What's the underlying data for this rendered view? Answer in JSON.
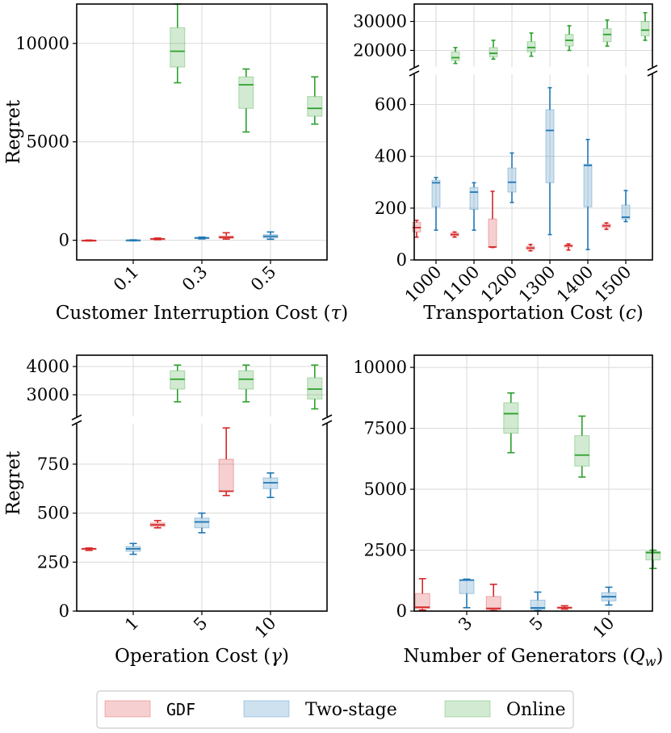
{
  "colors": {
    "GDF": "#d62728",
    "Two-stage": "#1f77b4",
    "Online": "#2ca02c"
  },
  "legend": {
    "placement": "bottom-center",
    "entries": [
      {
        "name": "GDF",
        "label": "GDF",
        "color": "#d62728"
      },
      {
        "name": "Two-stage",
        "label": "Two-stage",
        "color": "#1f77b4"
      },
      {
        "name": "Online",
        "label": "Online",
        "color": "#2ca02c"
      }
    ]
  },
  "chart_data": [
    {
      "type": "box",
      "id": "interruption",
      "xlabel": "Customer Interruption Cost (",
      "xsymbol": "τ",
      "xlabel_end": ")",
      "ylabel": "Regret",
      "categories": [
        "0.1",
        "0.3",
        "0.5"
      ],
      "ylim": [
        -1000,
        12000
      ],
      "yticks": [
        0,
        5000,
        10000
      ],
      "ytick_labels": [
        "0",
        "5000",
        "10000"
      ],
      "series": [
        {
          "name": "GDF",
          "boxes": [
            {
              "min": -30,
              "q1": -20,
              "median": -10,
              "q3": 0,
              "max": 10
            },
            {
              "min": 30,
              "q1": 50,
              "median": 70,
              "q3": 90,
              "max": 110
            },
            {
              "min": 60,
              "q1": 100,
              "median": 150,
              "q3": 220,
              "max": 380
            }
          ]
        },
        {
          "name": "Two-stage",
          "boxes": [
            {
              "min": -20,
              "q1": -10,
              "median": 0,
              "q3": 10,
              "max": 20
            },
            {
              "min": 70,
              "q1": 100,
              "median": 120,
              "q3": 140,
              "max": 160
            },
            {
              "min": 50,
              "q1": 120,
              "median": 200,
              "q3": 280,
              "max": 420
            }
          ]
        },
        {
          "name": "Online",
          "boxes": [
            {
              "min": 8000,
              "q1": 8800,
              "median": 9600,
              "q3": 10800,
              "max": 12000
            },
            {
              "min": 5500,
              "q1": 6700,
              "median": 7900,
              "q3": 8300,
              "max": 8700
            },
            {
              "min": 5900,
              "q1": 6300,
              "median": 6700,
              "q3": 7300,
              "max": 8300
            }
          ]
        }
      ]
    },
    {
      "type": "box",
      "id": "transportation",
      "xlabel": "Transportation Cost (",
      "xsymbol": "c",
      "xlabel_end": ")",
      "ylabel": "",
      "categories": [
        "1000",
        "1100",
        "1200",
        "1300",
        "1400",
        "1500"
      ],
      "broken_axis": true,
      "ylim_lower": [
        0,
        720
      ],
      "ylim_upper": [
        14000,
        36000
      ],
      "yticks_lower": [
        0,
        200,
        400,
        600
      ],
      "ytick_labels_lower": [
        "0",
        "200",
        "400",
        "600"
      ],
      "yticks_upper": [
        20000,
        30000
      ],
      "ytick_labels_upper": [
        "20000",
        "30000"
      ],
      "series": [
        {
          "name": "GDF",
          "boxes": [
            {
              "min": 88,
              "q1": 108,
              "median": 125,
              "q3": 145,
              "max": 153
            },
            {
              "min": 88,
              "q1": 93,
              "median": 98,
              "q3": 104,
              "max": 108
            },
            {
              "min": 48,
              "q1": 50,
              "median": 50,
              "q3": 158,
              "max": 265
            },
            {
              "min": 35,
              "q1": 40,
              "median": 46,
              "q3": 53,
              "max": 60
            },
            {
              "min": 38,
              "q1": 50,
              "median": 55,
              "q3": 58,
              "max": 62
            },
            {
              "min": 118,
              "q1": 125,
              "median": 132,
              "q3": 138,
              "max": 143
            }
          ]
        },
        {
          "name": "Two-stage",
          "boxes": [
            {
              "min": 115,
              "q1": 205,
              "median": 298,
              "q3": 308,
              "max": 318
            },
            {
              "min": 115,
              "q1": 195,
              "median": 262,
              "q3": 280,
              "max": 298
            },
            {
              "min": 222,
              "q1": 262,
              "median": 300,
              "q3": 355,
              "max": 413
            },
            {
              "min": 98,
              "q1": 298,
              "median": 500,
              "q3": 580,
              "max": 665
            },
            {
              "min": 40,
              "q1": 205,
              "median": 365,
              "q3": 370,
              "max": 465
            },
            {
              "min": 148,
              "q1": 158,
              "median": 165,
              "q3": 212,
              "max": 268
            }
          ]
        },
        {
          "name": "Online",
          "boxes": [
            {
              "min": 15500,
              "q1": 16500,
              "median": 17500,
              "q3": 19500,
              "max": 21000
            },
            {
              "min": 17000,
              "q1": 17800,
              "median": 19000,
              "q3": 21000,
              "max": 23500
            },
            {
              "min": 18000,
              "q1": 19500,
              "median": 21000,
              "q3": 23000,
              "max": 26000
            },
            {
              "min": 20000,
              "q1": 21500,
              "median": 23500,
              "q3": 25500,
              "max": 28500
            },
            {
              "min": 21500,
              "q1": 23000,
              "median": 25500,
              "q3": 27500,
              "max": 30500
            },
            {
              "min": 23500,
              "q1": 25000,
              "median": 27000,
              "q3": 30000,
              "max": 33000
            }
          ]
        }
      ]
    },
    {
      "type": "box",
      "id": "operation",
      "xlabel": "Operation Cost (",
      "xsymbol": "γ",
      "xlabel_end": ")",
      "ylabel": "Regret",
      "categories": [
        "1",
        "5",
        "10"
      ],
      "broken_axis": true,
      "ylim_lower": [
        0,
        960
      ],
      "ylim_upper": [
        2200,
        4400
      ],
      "yticks_lower": [
        0,
        250,
        500,
        750
      ],
      "ytick_labels_lower": [
        "0",
        "250",
        "500",
        "750"
      ],
      "yticks_upper": [
        3000,
        4000
      ],
      "ytick_labels_upper": [
        "3000",
        "4000"
      ],
      "series": [
        {
          "name": "GDF",
          "boxes": [
            {
              "min": 310,
              "q1": 315,
              "median": 318,
              "q3": 320,
              "max": 322
            },
            {
              "min": 425,
              "q1": 432,
              "median": 440,
              "q3": 450,
              "max": 462
            },
            {
              "min": 590,
              "q1": 610,
              "median": 612,
              "q3": 775,
              "max": 935
            }
          ]
        },
        {
          "name": "Two-stage",
          "boxes": [
            {
              "min": 290,
              "q1": 305,
              "median": 318,
              "q3": 330,
              "max": 345
            },
            {
              "min": 400,
              "q1": 425,
              "median": 455,
              "q3": 475,
              "max": 500
            },
            {
              "min": 580,
              "q1": 625,
              "median": 655,
              "q3": 680,
              "max": 705
            }
          ]
        },
        {
          "name": "Online",
          "boxes": [
            {
              "min": 2750,
              "q1": 3200,
              "median": 3550,
              "q3": 3850,
              "max": 4050
            },
            {
              "min": 2750,
              "q1": 3200,
              "median": 3550,
              "q3": 3850,
              "max": 4050
            },
            {
              "min": 2500,
              "q1": 2850,
              "median": 3200,
              "q3": 3600,
              "max": 4050
            }
          ]
        }
      ]
    },
    {
      "type": "box",
      "id": "generators",
      "xlabel": "Number of Generators (",
      "xsymbol": "Q",
      "xsymbol_sub": "w",
      "xlabel_end": ")",
      "ylabel": "",
      "categories": [
        "3",
        "5",
        "10"
      ],
      "ylim": [
        0,
        10500
      ],
      "yticks": [
        0,
        2500,
        5000,
        7500,
        10000
      ],
      "ytick_labels": [
        "0",
        "2500",
        "5000",
        "7500",
        "10000"
      ],
      "series": [
        {
          "name": "GDF",
          "boxes": [
            {
              "min": 40,
              "q1": 100,
              "median": 160,
              "q3": 720,
              "max": 1330
            },
            {
              "min": 20,
              "q1": 60,
              "median": 110,
              "q3": 600,
              "max": 1100
            },
            {
              "min": 80,
              "q1": 110,
              "median": 140,
              "q3": 170,
              "max": 220
            }
          ]
        },
        {
          "name": "Two-stage",
          "boxes": [
            {
              "min": 140,
              "q1": 720,
              "median": 1270,
              "q3": 1290,
              "max": 1310
            },
            {
              "min": 20,
              "q1": 60,
              "median": 130,
              "q3": 450,
              "max": 780
            },
            {
              "min": 250,
              "q1": 420,
              "median": 590,
              "q3": 760,
              "max": 980
            }
          ]
        },
        {
          "name": "Online",
          "boxes": [
            {
              "min": 6500,
              "q1": 7300,
              "median": 8100,
              "q3": 8550,
              "max": 8950
            },
            {
              "min": 5500,
              "q1": 5950,
              "median": 6400,
              "q3": 7200,
              "max": 8000
            },
            {
              "min": 1750,
              "q1": 2100,
              "median": 2400,
              "q3": 2450,
              "max": 2500
            }
          ]
        }
      ]
    }
  ]
}
